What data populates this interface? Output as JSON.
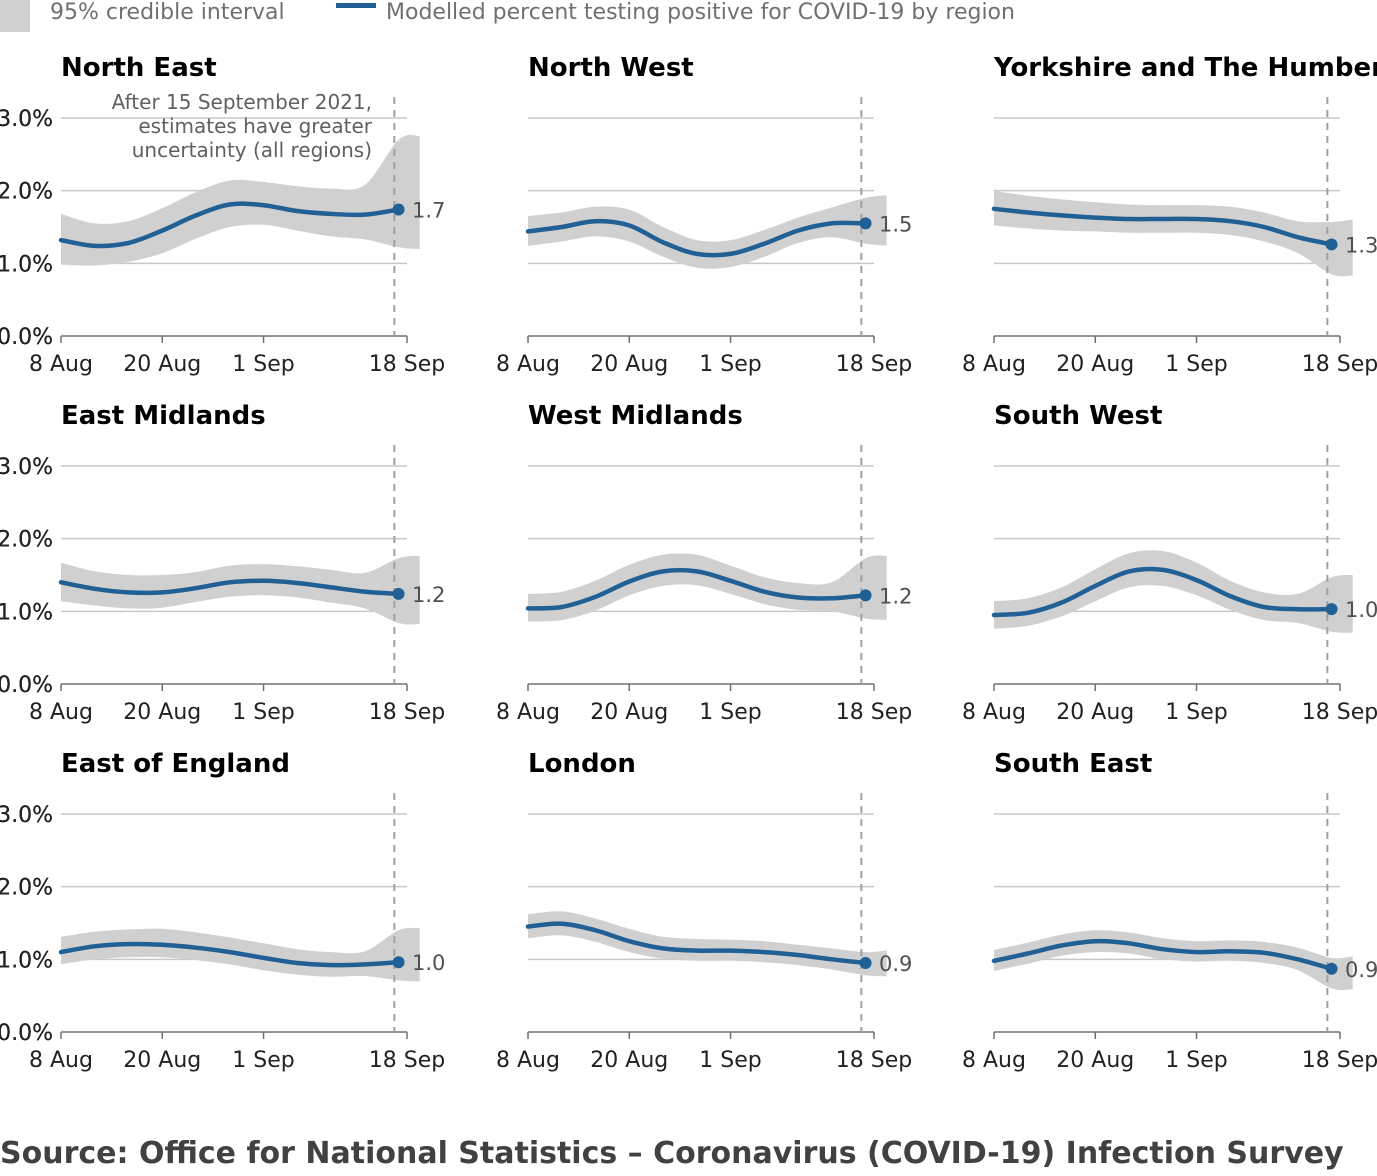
{
  "legend": {
    "interval_label": "95% credible interval",
    "line_label": "Modelled percent testing positive for COVID-19 by region"
  },
  "annotation": {
    "lines": [
      "After 15 September 2021,",
      "estimates have greater",
      "uncertainty (all regions)"
    ]
  },
  "source": "Source: Office for National Statistics – Coronavirus (COVID-19) Infection Survey",
  "colors": {
    "line": "#206095",
    "band": "#d0d0d0",
    "grid": "#c8c8c8",
    "axis": "#707070"
  },
  "chart_data": [
    {
      "type": "line",
      "title": "North East",
      "x": [
        "8 Aug",
        "12 Aug",
        "16 Aug",
        "20 Aug",
        "24 Aug",
        "28 Aug",
        "1 Sep",
        "5 Sep",
        "9 Sep",
        "13 Sep",
        "17 Sep"
      ],
      "x_ticks": [
        "8 Aug",
        "20 Aug",
        "1 Sep",
        "18 Sep"
      ],
      "y_ticks": [
        "3.0%",
        "2.0%",
        "1.0%",
        "0.0%"
      ],
      "ylim": [
        0,
        3.0
      ],
      "series": [
        {
          "values": [
            1.32,
            1.24,
            1.28,
            1.45,
            1.66,
            1.81,
            1.8,
            1.72,
            1.68,
            1.67,
            1.74
          ]
        }
      ],
      "ci_lower": [
        0.98,
        0.97,
        1.02,
        1.14,
        1.34,
        1.5,
        1.53,
        1.45,
        1.37,
        1.33,
        1.22
      ],
      "ci_upper": [
        1.68,
        1.55,
        1.58,
        1.76,
        1.98,
        2.14,
        2.12,
        2.06,
        2.03,
        2.08,
        2.7
      ],
      "end_label": "1.7"
    },
    {
      "type": "line",
      "title": "North West",
      "x": [
        "8 Aug",
        "12 Aug",
        "16 Aug",
        "20 Aug",
        "24 Aug",
        "28 Aug",
        "1 Sep",
        "5 Sep",
        "9 Sep",
        "13 Sep",
        "17 Sep"
      ],
      "x_ticks": [
        "8 Aug",
        "20 Aug",
        "1 Sep",
        "18 Sep"
      ],
      "y_ticks": [
        "3.0%",
        "2.0%",
        "1.0%",
        "0.0%"
      ],
      "ylim": [
        0,
        3.0
      ],
      "series": [
        {
          "values": [
            1.44,
            1.5,
            1.58,
            1.52,
            1.29,
            1.13,
            1.13,
            1.27,
            1.45,
            1.55,
            1.55
          ]
        }
      ],
      "ci_lower": [
        1.24,
        1.3,
        1.37,
        1.3,
        1.09,
        0.94,
        0.95,
        1.09,
        1.28,
        1.36,
        1.27
      ],
      "ci_upper": [
        1.65,
        1.7,
        1.78,
        1.74,
        1.5,
        1.32,
        1.32,
        1.46,
        1.63,
        1.77,
        1.9
      ],
      "end_label": "1.5"
    },
    {
      "type": "line",
      "title": "Yorkshire and The Humber",
      "x": [
        "8 Aug",
        "12 Aug",
        "16 Aug",
        "20 Aug",
        "24 Aug",
        "28 Aug",
        "1 Sep",
        "5 Sep",
        "9 Sep",
        "13 Sep",
        "17 Sep"
      ],
      "x_ticks": [
        "8 Aug",
        "20 Aug",
        "1 Sep",
        "18 Sep"
      ],
      "y_ticks": [
        "3.0%",
        "2.0%",
        "1.0%",
        "0.0%"
      ],
      "ylim": [
        0,
        3.0
      ],
      "series": [
        {
          "values": [
            1.75,
            1.7,
            1.66,
            1.63,
            1.61,
            1.61,
            1.61,
            1.58,
            1.5,
            1.36,
            1.26
          ]
        }
      ],
      "ci_lower": [
        1.52,
        1.48,
        1.45,
        1.44,
        1.42,
        1.42,
        1.42,
        1.39,
        1.3,
        1.14,
        0.85
      ],
      "ci_upper": [
        2.0,
        1.93,
        1.88,
        1.84,
        1.81,
        1.8,
        1.8,
        1.78,
        1.7,
        1.58,
        1.57
      ],
      "end_label": "1.3"
    },
    {
      "type": "line",
      "title": "East Midlands",
      "x": [
        "8 Aug",
        "12 Aug",
        "16 Aug",
        "20 Aug",
        "24 Aug",
        "28 Aug",
        "1 Sep",
        "5 Sep",
        "9 Sep",
        "13 Sep",
        "17 Sep"
      ],
      "x_ticks": [
        "8 Aug",
        "20 Aug",
        "1 Sep",
        "18 Sep"
      ],
      "y_ticks": [
        "3.0%",
        "2.0%",
        "1.0%",
        "0.0%"
      ],
      "ylim": [
        0,
        3.0
      ],
      "series": [
        {
          "values": [
            1.4,
            1.31,
            1.26,
            1.26,
            1.32,
            1.4,
            1.42,
            1.39,
            1.33,
            1.27,
            1.24
          ]
        }
      ],
      "ci_lower": [
        1.14,
        1.08,
        1.04,
        1.05,
        1.13,
        1.2,
        1.22,
        1.19,
        1.12,
        1.04,
        0.84
      ],
      "ci_upper": [
        1.67,
        1.55,
        1.5,
        1.5,
        1.54,
        1.63,
        1.65,
        1.62,
        1.57,
        1.53,
        1.73
      ],
      "end_label": "1.2"
    },
    {
      "type": "line",
      "title": "West Midlands",
      "x": [
        "8 Aug",
        "12 Aug",
        "16 Aug",
        "20 Aug",
        "24 Aug",
        "28 Aug",
        "1 Sep",
        "5 Sep",
        "9 Sep",
        "13 Sep",
        "17 Sep"
      ],
      "x_ticks": [
        "8 Aug",
        "20 Aug",
        "1 Sep",
        "18 Sep"
      ],
      "y_ticks": [
        "3.0%",
        "2.0%",
        "1.0%",
        "0.0%"
      ],
      "ylim": [
        0,
        3.0
      ],
      "series": [
        {
          "values": [
            1.04,
            1.06,
            1.2,
            1.41,
            1.55,
            1.55,
            1.42,
            1.27,
            1.19,
            1.18,
            1.22
          ]
        }
      ],
      "ci_lower": [
        0.86,
        0.88,
        1.01,
        1.22,
        1.35,
        1.36,
        1.24,
        1.1,
        1.02,
        1.0,
        0.9
      ],
      "ci_upper": [
        1.24,
        1.27,
        1.42,
        1.64,
        1.78,
        1.78,
        1.63,
        1.47,
        1.39,
        1.4,
        1.73
      ],
      "end_label": "1.2"
    },
    {
      "type": "line",
      "title": "South West",
      "x": [
        "8 Aug",
        "12 Aug",
        "16 Aug",
        "20 Aug",
        "24 Aug",
        "28 Aug",
        "1 Sep",
        "5 Sep",
        "9 Sep",
        "13 Sep",
        "17 Sep"
      ],
      "x_ticks": [
        "8 Aug",
        "20 Aug",
        "1 Sep",
        "18 Sep"
      ],
      "y_ticks": [
        "3.0%",
        "2.0%",
        "1.0%",
        "0.0%"
      ],
      "ylim": [
        0,
        3.0
      ],
      "series": [
        {
          "values": [
            0.95,
            0.98,
            1.12,
            1.35,
            1.55,
            1.57,
            1.43,
            1.21,
            1.06,
            1.03,
            1.03
          ]
        }
      ],
      "ci_lower": [
        0.76,
        0.8,
        0.93,
        1.14,
        1.33,
        1.35,
        1.22,
        1.02,
        0.88,
        0.84,
        0.72
      ],
      "ci_upper": [
        1.14,
        1.18,
        1.33,
        1.58,
        1.8,
        1.83,
        1.67,
        1.42,
        1.26,
        1.24,
        1.47
      ],
      "end_label": "1.0"
    },
    {
      "type": "line",
      "title": "East of England",
      "x": [
        "8 Aug",
        "12 Aug",
        "16 Aug",
        "20 Aug",
        "24 Aug",
        "28 Aug",
        "1 Sep",
        "5 Sep",
        "9 Sep",
        "13 Sep",
        "17 Sep"
      ],
      "x_ticks": [
        "8 Aug",
        "20 Aug",
        "1 Sep",
        "18 Sep"
      ],
      "y_ticks": [
        "3.0%",
        "2.0%",
        "1.0%",
        "0.0%"
      ],
      "ylim": [
        0,
        3.0
      ],
      "series": [
        {
          "values": [
            1.1,
            1.18,
            1.21,
            1.2,
            1.16,
            1.1,
            1.02,
            0.95,
            0.92,
            0.93,
            0.96
          ]
        }
      ],
      "ci_lower": [
        0.93,
        1.0,
        1.03,
        1.03,
        0.99,
        0.93,
        0.85,
        0.79,
        0.76,
        0.77,
        0.71
      ],
      "ci_upper": [
        1.31,
        1.38,
        1.41,
        1.42,
        1.37,
        1.3,
        1.22,
        1.14,
        1.1,
        1.11,
        1.4
      ],
      "end_label": "1.0"
    },
    {
      "type": "line",
      "title": "London",
      "x": [
        "8 Aug",
        "12 Aug",
        "16 Aug",
        "20 Aug",
        "24 Aug",
        "28 Aug",
        "1 Sep",
        "5 Sep",
        "9 Sep",
        "13 Sep",
        "17 Sep"
      ],
      "x_ticks": [
        "8 Aug",
        "20 Aug",
        "1 Sep",
        "18 Sep"
      ],
      "y_ticks": [
        "3.0%",
        "2.0%",
        "1.0%",
        "0.0%"
      ],
      "ylim": [
        0,
        3.0
      ],
      "series": [
        {
          "values": [
            1.45,
            1.49,
            1.4,
            1.25,
            1.15,
            1.12,
            1.12,
            1.1,
            1.06,
            1.0,
            0.95
          ]
        }
      ],
      "ci_lower": [
        1.29,
        1.33,
        1.24,
        1.1,
        1.01,
        0.98,
        0.98,
        0.96,
        0.92,
        0.86,
        0.78
      ],
      "ci_upper": [
        1.62,
        1.66,
        1.56,
        1.42,
        1.31,
        1.28,
        1.27,
        1.25,
        1.2,
        1.15,
        1.1
      ],
      "end_label": "0.9"
    },
    {
      "type": "line",
      "title": "South East",
      "x": [
        "8 Aug",
        "12 Aug",
        "16 Aug",
        "20 Aug",
        "24 Aug",
        "28 Aug",
        "1 Sep",
        "5 Sep",
        "9 Sep",
        "13 Sep",
        "17 Sep"
      ],
      "x_ticks": [
        "8 Aug",
        "20 Aug",
        "1 Sep",
        "18 Sep"
      ],
      "y_ticks": [
        "3.0%",
        "2.0%",
        "1.0%",
        "0.0%"
      ],
      "ylim": [
        0,
        3.0
      ],
      "series": [
        {
          "values": [
            0.98,
            1.08,
            1.19,
            1.25,
            1.22,
            1.14,
            1.1,
            1.11,
            1.09,
            1.0,
            0.87
          ]
        }
      ],
      "ci_lower": [
        0.84,
        0.94,
        1.05,
        1.1,
        1.08,
        1.0,
        0.97,
        0.98,
        0.95,
        0.85,
        0.6
      ],
      "ci_upper": [
        1.13,
        1.23,
        1.34,
        1.4,
        1.37,
        1.29,
        1.25,
        1.26,
        1.24,
        1.16,
        1.02
      ],
      "end_label": "0.9"
    }
  ]
}
